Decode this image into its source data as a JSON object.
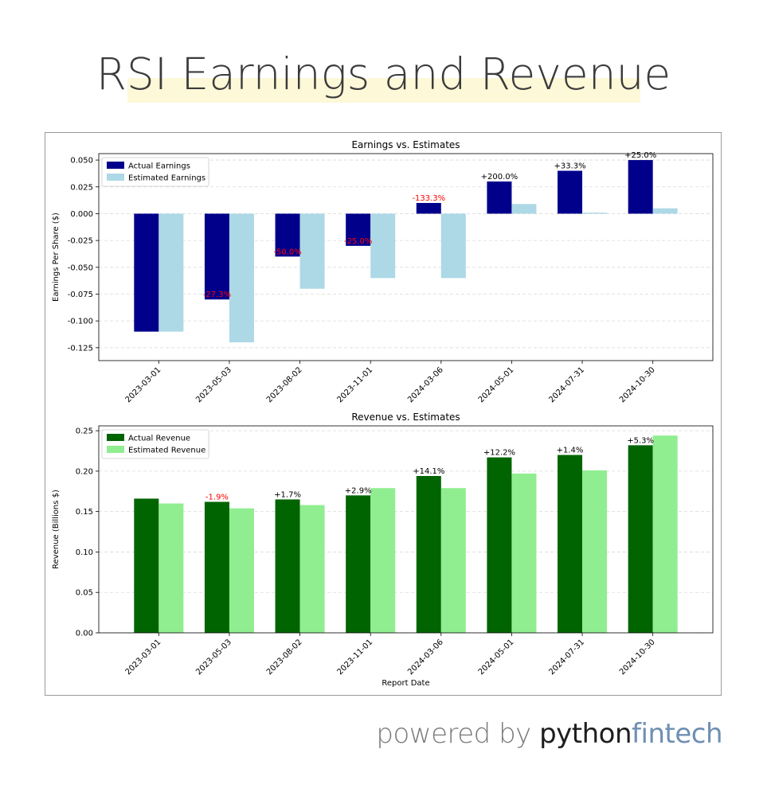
{
  "page": {
    "title": "RSI Earnings and Revenue",
    "footer_prefix": "powered by ",
    "footer_brand_a": "python",
    "footer_brand_b": "fintech"
  },
  "colors": {
    "actual_earnings": "#00008b",
    "estimated_earnings": "#add8e6",
    "actual_revenue": "#006400",
    "estimated_revenue": "#90ee90",
    "positive_label": "#000000",
    "negative_label": "#ff0000",
    "title_highlight": "#fdf8d8",
    "brand_accent": "#6f8fb3"
  },
  "chart_data": [
    {
      "type": "bar",
      "title": "Earnings vs. Estimates",
      "xlabel": "",
      "ylabel": "Earnings Per Share ($)",
      "categories": [
        "2023-03-01",
        "2023-05-03",
        "2023-08-02",
        "2023-11-01",
        "2024-03-06",
        "2024-05-01",
        "2024-07-31",
        "2024-10-30"
      ],
      "series": [
        {
          "name": "Actual Earnings",
          "values": [
            -0.11,
            -0.08,
            -0.04,
            -0.03,
            0.01,
            0.03,
            0.04,
            0.05
          ]
        },
        {
          "name": "Estimated Earnings",
          "values": [
            -0.11,
            -0.12,
            -0.07,
            -0.06,
            -0.06,
            0.009,
            0.001,
            0.005
          ]
        }
      ],
      "surprise_labels": [
        "",
        "-27.3%",
        "-50.0%",
        "-25.0%",
        "-133.3%",
        "+200.0%",
        "+33.3%",
        "+25.0%"
      ],
      "ylim": [
        -0.137,
        0.056
      ],
      "yticks": [
        "0.050",
        "0.025",
        "0.000",
        "-0.025",
        "-0.050",
        "-0.075",
        "-0.100",
        "-0.125"
      ],
      "ytick_values": [
        0.05,
        0.025,
        0.0,
        -0.025,
        -0.05,
        -0.075,
        -0.1,
        -0.125
      ],
      "grid": true,
      "legend": "top-left"
    },
    {
      "type": "bar",
      "title": "Revenue vs. Estimates",
      "xlabel": "Report Date",
      "ylabel": "Revenue (Billions $)",
      "categories": [
        "2023-03-01",
        "2023-05-03",
        "2023-08-02",
        "2023-11-01",
        "2024-03-06",
        "2024-05-01",
        "2024-07-31",
        "2024-10-30"
      ],
      "series": [
        {
          "name": "Actual Revenue",
          "values": [
            0.166,
            0.162,
            0.165,
            0.17,
            0.194,
            0.217,
            0.22,
            0.232
          ]
        },
        {
          "name": "Estimated Revenue",
          "values": [
            0.16,
            0.154,
            0.158,
            0.179,
            0.179,
            0.197,
            0.201,
            0.244
          ]
        }
      ],
      "surprise_labels": [
        "",
        "-1.9%",
        "+1.7%",
        "+2.9%",
        "+14.1%",
        "+12.2%",
        "+1.4%",
        "+5.3%"
      ],
      "ylim": [
        0.0,
        0.256
      ],
      "yticks": [
        "0.25",
        "0.20",
        "0.15",
        "0.10",
        "0.05",
        "0.00"
      ],
      "ytick_values": [
        0.25,
        0.2,
        0.15,
        0.1,
        0.05,
        0.0
      ],
      "grid": true,
      "legend": "top-left"
    }
  ]
}
